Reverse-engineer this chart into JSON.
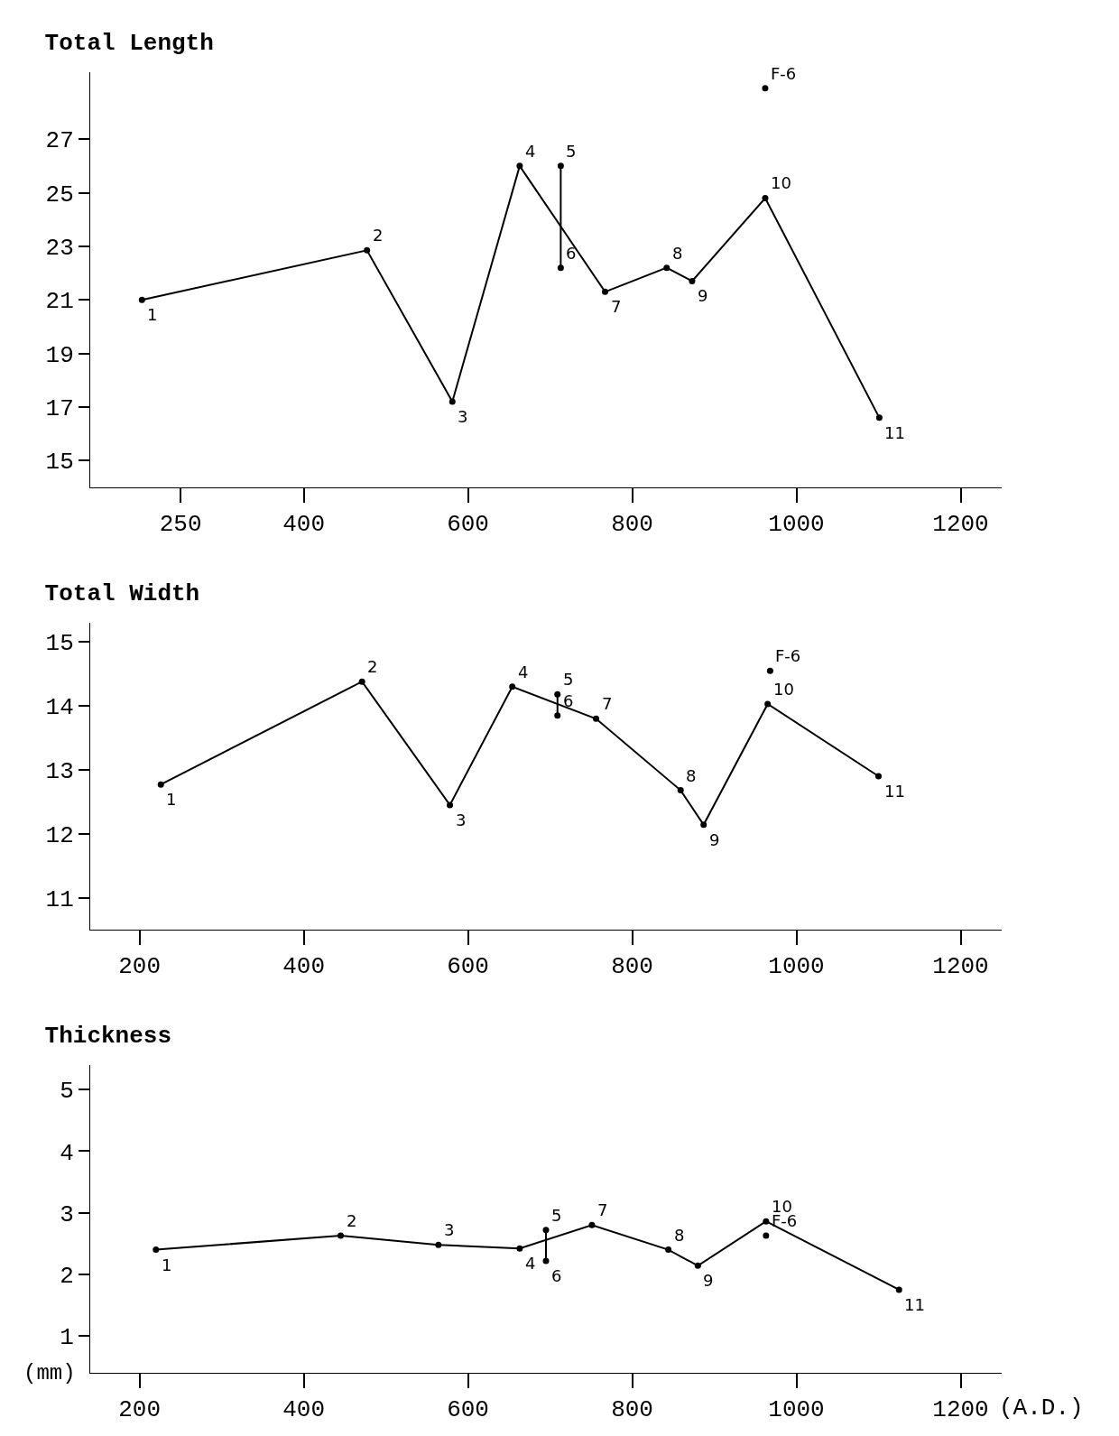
{
  "chart_data": [
    {
      "type": "line",
      "title": "Total Length",
      "xlim": [
        140,
        1250
      ],
      "xticks": [
        250,
        400,
        600,
        800,
        1000,
        1200
      ],
      "ylim": [
        14,
        29.5
      ],
      "yticks": [
        15,
        17,
        19,
        21,
        23,
        25,
        27
      ],
      "marker": "circle",
      "grid": false,
      "series": [
        {
          "color": "#000000",
          "x": [
            203,
            477,
            581,
            663,
            767,
            842,
            873,
            962,
            1101
          ],
          "values": [
            21.0,
            22.85,
            17.2,
            26.0,
            21.3,
            22.2,
            21.7,
            24.8,
            16.6
          ]
        },
        {
          "color": "#000000",
          "x": [
            713,
            713
          ],
          "values": [
            26.0,
            22.2
          ]
        },
        {
          "type": "scatter",
          "color": "#000000",
          "x": [
            962
          ],
          "values": [
            28.9
          ]
        }
      ],
      "annotations": [
        {
          "text": "1",
          "x": 203,
          "y": 21.0
        },
        {
          "text": "2",
          "x": 477,
          "y": 22.85
        },
        {
          "text": "3",
          "x": 581,
          "y": 17.2
        },
        {
          "text": "4",
          "x": 663,
          "y": 26.0
        },
        {
          "text": "5",
          "x": 713,
          "y": 26.0
        },
        {
          "text": "6",
          "x": 713,
          "y": 22.2
        },
        {
          "text": "7",
          "x": 767,
          "y": 21.3
        },
        {
          "text": "8",
          "x": 842,
          "y": 22.2
        },
        {
          "text": "9",
          "x": 873,
          "y": 21.7
        },
        {
          "text": "10",
          "x": 962,
          "y": 24.8
        },
        {
          "text": "11",
          "x": 1101,
          "y": 16.6
        },
        {
          "text": "F-6",
          "x": 962,
          "y": 28.9
        }
      ]
    },
    {
      "type": "line",
      "title": "Total Width",
      "xlim": [
        140,
        1250
      ],
      "xticks": [
        200,
        400,
        600,
        800,
        1000,
        1200
      ],
      "ylim": [
        10.5,
        15.3
      ],
      "yticks": [
        11,
        12,
        13,
        14,
        15
      ],
      "marker": "circle",
      "grid": false,
      "series": [
        {
          "color": "#000000",
          "x": [
            226,
            471,
            578,
            654,
            756,
            859,
            887,
            965,
            1100
          ],
          "values": [
            12.77,
            14.38,
            12.45,
            14.3,
            13.8,
            12.68,
            12.14,
            14.03,
            12.9
          ]
        },
        {
          "color": "#000000",
          "x": [
            709,
            709
          ],
          "values": [
            14.18,
            13.85
          ]
        },
        {
          "type": "scatter",
          "color": "#000000",
          "x": [
            968
          ],
          "values": [
            14.55
          ]
        }
      ],
      "annotations": [
        {
          "text": "1",
          "x": 226,
          "y": 12.77
        },
        {
          "text": "2",
          "x": 471,
          "y": 14.38
        },
        {
          "text": "3",
          "x": 578,
          "y": 12.45
        },
        {
          "text": "4",
          "x": 654,
          "y": 14.3
        },
        {
          "text": "5",
          "x": 709,
          "y": 14.18
        },
        {
          "text": "6",
          "x": 709,
          "y": 13.85
        },
        {
          "text": "7",
          "x": 756,
          "y": 13.8
        },
        {
          "text": "8",
          "x": 859,
          "y": 12.68
        },
        {
          "text": "9",
          "x": 887,
          "y": 12.14
        },
        {
          "text": "10",
          "x": 965,
          "y": 14.03
        },
        {
          "text": "11",
          "x": 1100,
          "y": 12.9
        },
        {
          "text": "F-6",
          "x": 968,
          "y": 14.55
        }
      ]
    },
    {
      "type": "line",
      "title": "Thickness",
      "xlabel": "(A.D.)",
      "ylabel": "(mm)",
      "xlim": [
        140,
        1250
      ],
      "xticks": [
        200,
        400,
        600,
        800,
        1000,
        1200
      ],
      "ylim": [
        0.4,
        5.4
      ],
      "yticks": [
        1,
        2,
        3,
        4,
        5
      ],
      "marker": "circle",
      "grid": false,
      "series": [
        {
          "color": "#000000",
          "x": [
            220,
            445,
            564,
            663,
            751,
            844,
            880,
            963,
            1125
          ],
          "values": [
            2.4,
            2.63,
            2.48,
            2.42,
            2.8,
            2.4,
            2.14,
            2.86,
            1.75
          ]
        },
        {
          "color": "#000000",
          "x": [
            695,
            695
          ],
          "values": [
            2.72,
            2.22
          ]
        },
        {
          "type": "scatter",
          "color": "#000000",
          "x": [
            963
          ],
          "values": [
            2.63
          ]
        }
      ],
      "annotations": [
        {
          "text": "1",
          "x": 220,
          "y": 2.4
        },
        {
          "text": "2",
          "x": 445,
          "y": 2.63
        },
        {
          "text": "3",
          "x": 564,
          "y": 2.48
        },
        {
          "text": "4",
          "x": 663,
          "y": 2.42
        },
        {
          "text": "5",
          "x": 695,
          "y": 2.72
        },
        {
          "text": "6",
          "x": 695,
          "y": 2.22
        },
        {
          "text": "7",
          "x": 751,
          "y": 2.8
        },
        {
          "text": "8",
          "x": 844,
          "y": 2.4
        },
        {
          "text": "9",
          "x": 880,
          "y": 2.14
        },
        {
          "text": "10",
          "x": 963,
          "y": 2.86
        },
        {
          "text": "11",
          "x": 1125,
          "y": 1.75
        },
        {
          "text": "F-6",
          "x": 963,
          "y": 2.63
        }
      ]
    }
  ]
}
